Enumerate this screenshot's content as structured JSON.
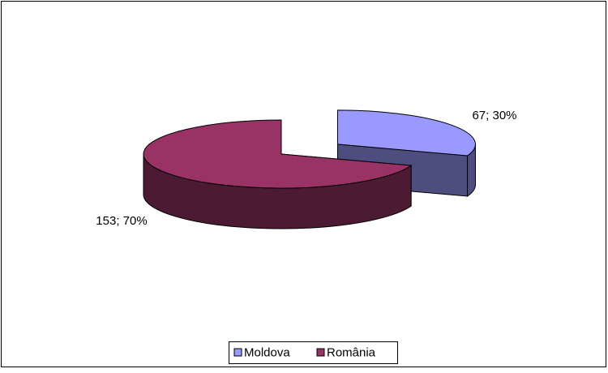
{
  "chart_data": {
    "type": "pie3d",
    "categories": [
      "Moldova",
      "România"
    ],
    "values": [
      67,
      153
    ],
    "value_labels": [
      "67; 30%",
      "153; 70%"
    ],
    "colors": [
      "#9999ff",
      "#993366"
    ],
    "legend": "bottom"
  }
}
